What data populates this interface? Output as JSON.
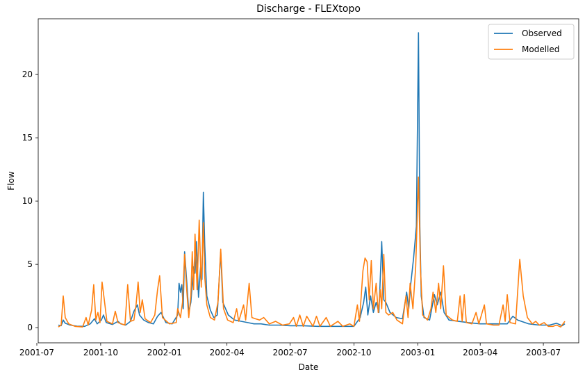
{
  "chart_data": {
    "type": "line",
    "title": "Discharge - FLEXtopo",
    "xlabel": "Date",
    "ylabel": "Flow",
    "xlim": [
      "2001-07-03",
      "2003-08-21"
    ],
    "ylim": [
      -1.2,
      24.4
    ],
    "x_ticks": [
      "2001-07",
      "2001-10",
      "2002-01",
      "2002-04",
      "2002-07",
      "2002-10",
      "2003-01",
      "2003-04",
      "2003-07"
    ],
    "y_ticks": [
      0,
      5,
      10,
      15,
      20
    ],
    "grid": false,
    "legend": {
      "placement": "top-right",
      "entries": [
        "Observed",
        "Modelled"
      ]
    },
    "series": [
      {
        "name": "Observed",
        "color": "#1f77b4",
        "points": [
          [
            "2001-08-01",
            0.2
          ],
          [
            "2001-08-05",
            0.15
          ],
          [
            "2001-08-08",
            0.6
          ],
          [
            "2001-08-11",
            0.35
          ],
          [
            "2001-08-18",
            0.2
          ],
          [
            "2001-08-28",
            0.12
          ],
          [
            "2001-09-08",
            0.1
          ],
          [
            "2001-09-16",
            0.3
          ],
          [
            "2001-09-22",
            0.7
          ],
          [
            "2001-09-26",
            0.3
          ],
          [
            "2001-10-02",
            0.6
          ],
          [
            "2001-10-05",
            1.0
          ],
          [
            "2001-10-09",
            0.4
          ],
          [
            "2001-10-18",
            0.25
          ],
          [
            "2001-10-26",
            0.5
          ],
          [
            "2001-10-30",
            0.3
          ],
          [
            "2001-11-06",
            0.2
          ],
          [
            "2001-11-13",
            0.5
          ],
          [
            "2001-11-18",
            1.3
          ],
          [
            "2001-11-23",
            1.8
          ],
          [
            "2001-11-26",
            1.0
          ],
          [
            "2001-12-02",
            0.6
          ],
          [
            "2001-12-09",
            0.4
          ],
          [
            "2001-12-16",
            0.3
          ],
          [
            "2001-12-22",
            0.9
          ],
          [
            "2001-12-27",
            1.2
          ],
          [
            "2002-01-03",
            0.4
          ],
          [
            "2002-01-12",
            0.3
          ],
          [
            "2002-01-20",
            1.0
          ],
          [
            "2002-01-22",
            3.5
          ],
          [
            "2002-01-24",
            2.8
          ],
          [
            "2002-01-26",
            3.4
          ],
          [
            "2002-01-28",
            1.5
          ],
          [
            "2002-01-30",
            6.0
          ],
          [
            "2002-02-02",
            3.7
          ],
          [
            "2002-02-05",
            1.2
          ],
          [
            "2002-02-08",
            2.0
          ],
          [
            "2002-02-12",
            4.8
          ],
          [
            "2002-02-14",
            4.3
          ],
          [
            "2002-02-16",
            6.8
          ],
          [
            "2002-02-19",
            2.4
          ],
          [
            "2002-02-22",
            4.8
          ],
          [
            "2002-02-24",
            3.8
          ],
          [
            "2002-02-26",
            10.7
          ],
          [
            "2002-02-28",
            6.5
          ],
          [
            "2002-03-03",
            2.5
          ],
          [
            "2002-03-08",
            1.4
          ],
          [
            "2002-03-13",
            0.8
          ],
          [
            "2002-03-18",
            1.0
          ],
          [
            "2002-03-23",
            6.0
          ],
          [
            "2002-03-26",
            2.0
          ],
          [
            "2002-04-03",
            1.0
          ],
          [
            "2002-04-12",
            0.6
          ],
          [
            "2002-04-22",
            0.5
          ],
          [
            "2002-05-01",
            0.4
          ],
          [
            "2002-05-10",
            0.3
          ],
          [
            "2002-05-20",
            0.3
          ],
          [
            "2002-06-01",
            0.2
          ],
          [
            "2002-06-15",
            0.2
          ],
          [
            "2002-07-01",
            0.15
          ],
          [
            "2002-07-20",
            0.15
          ],
          [
            "2002-08-10",
            0.1
          ],
          [
            "2002-09-01",
            0.1
          ],
          [
            "2002-09-20",
            0.1
          ],
          [
            "2002-10-01",
            0.1
          ],
          [
            "2002-10-10",
            0.8
          ],
          [
            "2002-10-15",
            2.0
          ],
          [
            "2002-10-18",
            3.2
          ],
          [
            "2002-10-21",
            1.0
          ],
          [
            "2002-10-25",
            2.5
          ],
          [
            "2002-10-29",
            1.2
          ],
          [
            "2002-11-02",
            2.0
          ],
          [
            "2002-11-06",
            1.2
          ],
          [
            "2002-11-10",
            6.8
          ],
          [
            "2002-11-13",
            2.2
          ],
          [
            "2002-11-16",
            2.0
          ],
          [
            "2002-11-22",
            1.2
          ],
          [
            "2002-12-01",
            0.8
          ],
          [
            "2002-12-10",
            0.7
          ],
          [
            "2002-12-16",
            2.8
          ],
          [
            "2002-12-19",
            1.5
          ],
          [
            "2002-12-22",
            3.5
          ],
          [
            "2002-12-26",
            5.5
          ],
          [
            "2002-12-30",
            8.0
          ],
          [
            "2003-01-02",
            23.3
          ],
          [
            "2003-01-04",
            8.0
          ],
          [
            "2003-01-06",
            2.5
          ],
          [
            "2003-01-10",
            0.8
          ],
          [
            "2003-01-18",
            0.6
          ],
          [
            "2003-01-25",
            2.6
          ],
          [
            "2003-01-29",
            1.8
          ],
          [
            "2003-02-03",
            2.8
          ],
          [
            "2003-02-08",
            1.2
          ],
          [
            "2003-02-15",
            0.6
          ],
          [
            "2003-03-01",
            0.5
          ],
          [
            "2003-03-15",
            0.4
          ],
          [
            "2003-04-01",
            0.3
          ],
          [
            "2003-04-20",
            0.3
          ],
          [
            "2003-05-10",
            0.3
          ],
          [
            "2003-05-18",
            0.9
          ],
          [
            "2003-05-25",
            0.6
          ],
          [
            "2003-06-10",
            0.3
          ],
          [
            "2003-06-25",
            0.2
          ],
          [
            "2003-07-10",
            0.2
          ],
          [
            "2003-07-20",
            0.35
          ],
          [
            "2003-07-28",
            0.15
          ],
          [
            "2003-08-01",
            0.3
          ]
        ]
      },
      {
        "name": "Modelled",
        "color": "#ff7f0e",
        "points": [
          [
            "2001-08-01",
            0.05
          ],
          [
            "2001-08-05",
            0.2
          ],
          [
            "2001-08-08",
            2.5
          ],
          [
            "2001-08-11",
            0.8
          ],
          [
            "2001-08-16",
            0.3
          ],
          [
            "2001-08-25",
            0.1
          ],
          [
            "2001-09-05",
            0.05
          ],
          [
            "2001-09-10",
            0.8
          ],
          [
            "2001-09-13",
            0.2
          ],
          [
            "2001-09-18",
            1.4
          ],
          [
            "2001-09-21",
            3.4
          ],
          [
            "2001-09-24",
            0.6
          ],
          [
            "2001-09-27",
            1.2
          ],
          [
            "2001-09-30",
            0.4
          ],
          [
            "2001-10-03",
            3.6
          ],
          [
            "2001-10-06",
            2.3
          ],
          [
            "2001-10-10",
            0.5
          ],
          [
            "2001-10-18",
            0.3
          ],
          [
            "2001-10-22",
            1.3
          ],
          [
            "2001-10-26",
            0.4
          ],
          [
            "2001-11-05",
            0.2
          ],
          [
            "2001-11-09",
            3.4
          ],
          [
            "2001-11-13",
            0.5
          ],
          [
            "2001-11-18",
            0.6
          ],
          [
            "2001-11-21",
            1.8
          ],
          [
            "2001-11-24",
            3.6
          ],
          [
            "2001-11-27",
            1.2
          ],
          [
            "2001-11-30",
            2.2
          ],
          [
            "2001-12-04",
            0.7
          ],
          [
            "2001-12-12",
            0.4
          ],
          [
            "2001-12-18",
            1.0
          ],
          [
            "2001-12-22",
            3.0
          ],
          [
            "2001-12-25",
            4.1
          ],
          [
            "2001-12-29",
            0.8
          ],
          [
            "2002-01-08",
            0.3
          ],
          [
            "2002-01-18",
            0.4
          ],
          [
            "2002-01-20",
            1.5
          ],
          [
            "2002-01-24",
            0.8
          ],
          [
            "2002-01-27",
            2.0
          ],
          [
            "2002-01-30",
            5.8
          ],
          [
            "2002-02-02",
            3.0
          ],
          [
            "2002-02-05",
            0.8
          ],
          [
            "2002-02-08",
            2.5
          ],
          [
            "2002-02-10",
            6.0
          ],
          [
            "2002-02-12",
            3.0
          ],
          [
            "2002-02-14",
            7.4
          ],
          [
            "2002-02-17",
            3.0
          ],
          [
            "2002-02-20",
            8.5
          ],
          [
            "2002-02-23",
            3.2
          ],
          [
            "2002-02-26",
            8.3
          ],
          [
            "2002-02-28",
            4.0
          ],
          [
            "2002-03-03",
            1.8
          ],
          [
            "2002-03-08",
            0.8
          ],
          [
            "2002-03-14",
            0.6
          ],
          [
            "2002-03-19",
            2.0
          ],
          [
            "2002-03-23",
            6.2
          ],
          [
            "2002-03-27",
            1.5
          ],
          [
            "2002-04-02",
            0.6
          ],
          [
            "2002-04-10",
            0.4
          ],
          [
            "2002-04-15",
            1.5
          ],
          [
            "2002-04-18",
            0.5
          ],
          [
            "2002-04-25",
            1.8
          ],
          [
            "2002-04-28",
            0.6
          ],
          [
            "2002-05-03",
            3.5
          ],
          [
            "2002-05-07",
            0.8
          ],
          [
            "2002-05-12",
            0.7
          ],
          [
            "2002-05-18",
            0.6
          ],
          [
            "2002-05-24",
            0.8
          ],
          [
            "2002-06-01",
            0.3
          ],
          [
            "2002-06-10",
            0.5
          ],
          [
            "2002-06-20",
            0.2
          ],
          [
            "2002-06-30",
            0.3
          ],
          [
            "2002-07-06",
            0.8
          ],
          [
            "2002-07-10",
            0.1
          ],
          [
            "2002-07-15",
            1.0
          ],
          [
            "2002-07-20",
            0.1
          ],
          [
            "2002-07-25",
            0.9
          ],
          [
            "2002-08-03",
            0.1
          ],
          [
            "2002-08-08",
            0.9
          ],
          [
            "2002-08-13",
            0.1
          ],
          [
            "2002-08-22",
            0.8
          ],
          [
            "2002-08-28",
            0.1
          ],
          [
            "2002-09-08",
            0.5
          ],
          [
            "2002-09-15",
            0.1
          ],
          [
            "2002-09-25",
            0.3
          ],
          [
            "2002-10-01",
            0.1
          ],
          [
            "2002-10-06",
            1.8
          ],
          [
            "2002-10-09",
            0.5
          ],
          [
            "2002-10-14",
            4.5
          ],
          [
            "2002-10-17",
            5.5
          ],
          [
            "2002-10-20",
            5.2
          ],
          [
            "2002-10-23",
            2.2
          ],
          [
            "2002-10-26",
            5.3
          ],
          [
            "2002-10-29",
            1.5
          ],
          [
            "2002-11-02",
            3.5
          ],
          [
            "2002-11-05",
            1.2
          ],
          [
            "2002-11-08",
            3.0
          ],
          [
            "2002-11-10",
            1.5
          ],
          [
            "2002-11-13",
            5.8
          ],
          [
            "2002-11-16",
            1.2
          ],
          [
            "2002-11-20",
            1.0
          ],
          [
            "2002-11-26",
            1.2
          ],
          [
            "2002-12-02",
            0.6
          ],
          [
            "2002-12-10",
            0.3
          ],
          [
            "2002-12-15",
            2.5
          ],
          [
            "2002-12-18",
            0.8
          ],
          [
            "2002-12-21",
            3.5
          ],
          [
            "2002-12-25",
            1.5
          ],
          [
            "2002-12-29",
            4.8
          ],
          [
            "2003-01-02",
            11.9
          ],
          [
            "2003-01-05",
            4.5
          ],
          [
            "2003-01-08",
            1.0
          ],
          [
            "2003-01-15",
            0.6
          ],
          [
            "2003-01-20",
            1.5
          ],
          [
            "2003-01-23",
            2.8
          ],
          [
            "2003-01-27",
            1.2
          ],
          [
            "2003-01-31",
            3.5
          ],
          [
            "2003-02-03",
            1.5
          ],
          [
            "2003-02-07",
            4.9
          ],
          [
            "2003-02-11",
            1.0
          ],
          [
            "2003-02-20",
            0.6
          ],
          [
            "2003-02-27",
            0.5
          ],
          [
            "2003-03-03",
            2.5
          ],
          [
            "2003-03-06",
            0.5
          ],
          [
            "2003-03-09",
            2.6
          ],
          [
            "2003-03-12",
            0.4
          ],
          [
            "2003-03-20",
            0.3
          ],
          [
            "2003-03-26",
            1.2
          ],
          [
            "2003-03-30",
            0.3
          ],
          [
            "2003-04-07",
            1.8
          ],
          [
            "2003-04-10",
            0.3
          ],
          [
            "2003-04-20",
            0.2
          ],
          [
            "2003-04-28",
            0.2
          ],
          [
            "2003-05-04",
            1.8
          ],
          [
            "2003-05-07",
            0.5
          ],
          [
            "2003-05-10",
            2.6
          ],
          [
            "2003-05-14",
            0.4
          ],
          [
            "2003-05-22",
            0.3
          ],
          [
            "2003-05-28",
            5.4
          ],
          [
            "2003-06-02",
            2.5
          ],
          [
            "2003-06-08",
            0.8
          ],
          [
            "2003-06-15",
            0.3
          ],
          [
            "2003-06-20",
            0.5
          ],
          [
            "2003-06-25",
            0.2
          ],
          [
            "2003-07-02",
            0.4
          ],
          [
            "2003-07-08",
            0.1
          ],
          [
            "2003-07-15",
            0.1
          ],
          [
            "2003-07-20",
            0.2
          ],
          [
            "2003-07-26",
            0.05
          ],
          [
            "2003-08-01",
            0.5
          ]
        ]
      }
    ]
  }
}
